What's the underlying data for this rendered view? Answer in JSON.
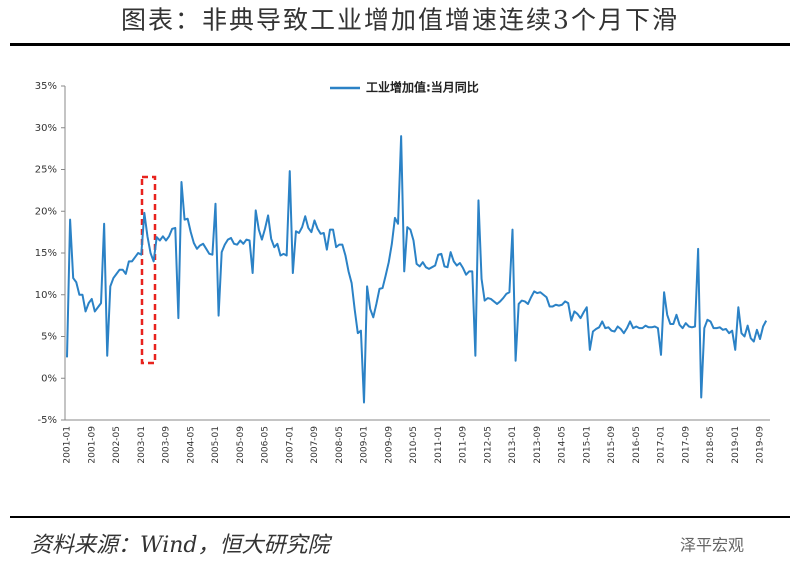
{
  "title": "图表：非典导致工业增加值增速连续3个月下滑",
  "source": "资料来源：Wind，恒大研究院",
  "watermark": "泽平宏观",
  "chart_data": {
    "type": "line",
    "categories": [
      "2001-01",
      null,
      null,
      null,
      null,
      null,
      null,
      null,
      "2001-09",
      null,
      null,
      null,
      null,
      null,
      null,
      null,
      "2002-05",
      null,
      null,
      null,
      null,
      null,
      null,
      null,
      "2003-01",
      null,
      null,
      null,
      null,
      null,
      null,
      null,
      "2003-09",
      null,
      null,
      null,
      null,
      null,
      null,
      null,
      "2004-05",
      null,
      null,
      null,
      null,
      null,
      null,
      null,
      "2005-01",
      null,
      null,
      null,
      null,
      null,
      null,
      null,
      "2005-09",
      null,
      null,
      null,
      null,
      null,
      null,
      null,
      "2006-05",
      null,
      null,
      null,
      null,
      null,
      null,
      null,
      "2007-01",
      null,
      null,
      null,
      null,
      null,
      null,
      null,
      "2007-09",
      null,
      null,
      null,
      null,
      null,
      null,
      null,
      "2008-05",
      null,
      null,
      null,
      null,
      null,
      null,
      null,
      "2009-01",
      null,
      null,
      null,
      null,
      null,
      null,
      null,
      "2009-09",
      null,
      null,
      null,
      null,
      null,
      null,
      null,
      "2010-05",
      null,
      null,
      null,
      null,
      null,
      null,
      null,
      "2011-01",
      null,
      null,
      null,
      null,
      null,
      null,
      null,
      "2011-09",
      null,
      null,
      null,
      null,
      null,
      null,
      null,
      "2012-05",
      null,
      null,
      null,
      null,
      null,
      null,
      null,
      "2013-01",
      null,
      null,
      null,
      null,
      null,
      null,
      null,
      "2013-09",
      null,
      null,
      null,
      null,
      null,
      null,
      null,
      "2014-05",
      null,
      null,
      null,
      null,
      null,
      null,
      null,
      "2015-01",
      null,
      null,
      null,
      null,
      null,
      null,
      null,
      "2015-09",
      null,
      null,
      null,
      null,
      null,
      null,
      null,
      "2016-05",
      null,
      null,
      null,
      null,
      null,
      null,
      null,
      "2017-01",
      null,
      null,
      null,
      null,
      null,
      null,
      null,
      "2017-09",
      null,
      null,
      null,
      null,
      null,
      null,
      null,
      "2018-05",
      null,
      null,
      null,
      null,
      null,
      null,
      null,
      "2019-01",
      null,
      null,
      null,
      null,
      null,
      null,
      null,
      "2019-09",
      null,
      null
    ],
    "series": [
      {
        "name": "工业增加值:当月同比",
        "color": "#2b82c6",
        "values": [
          2.5,
          19,
          12,
          11.5,
          10,
          10,
          8,
          9,
          9.5,
          8,
          8.5,
          9,
          18.5,
          2.7,
          11,
          12,
          12.5,
          13,
          13,
          12.5,
          14,
          14,
          14.5,
          15,
          14.8,
          19.8,
          17,
          15,
          14,
          16.9,
          16.5,
          17,
          16.5,
          17,
          17.9,
          18,
          7.2,
          23.5,
          19,
          19.1,
          17.5,
          16.2,
          15.5,
          15.9,
          16.1,
          15.5,
          14.9,
          14.8,
          20.9,
          7.5,
          15.1,
          16,
          16.6,
          16.8,
          16.1,
          16,
          16.5,
          16.1,
          16.6,
          16.5,
          12.6,
          20.1,
          17.8,
          16.6,
          17.9,
          19.5,
          16.7,
          15.7,
          16.1,
          14.7,
          14.9,
          14.7,
          24.8,
          12.6,
          17.6,
          17.4,
          18.1,
          19.4,
          18,
          17.5,
          18.9,
          17.9,
          17.3,
          17.4,
          15.4,
          17.8,
          17.8,
          15.7,
          16,
          16,
          14.7,
          12.8,
          11.4,
          8.2,
          5.4,
          5.7,
          -2.9,
          11,
          8.3,
          7.3,
          8.9,
          10.7,
          10.8,
          12.3,
          13.9,
          16.1,
          19.2,
          18.5,
          29,
          12.8,
          18.1,
          17.8,
          16.5,
          13.7,
          13.4,
          13.9,
          13.3,
          13.1,
          13.3,
          13.5,
          14.8,
          14.9,
          13.4,
          13.3,
          15.1,
          14,
          13.5,
          13.8,
          13.2,
          12.4,
          12.8,
          12.8,
          2.7,
          21.3,
          11.9,
          9.3,
          9.6,
          9.5,
          9.2,
          8.9,
          9.2,
          9.6,
          10.1,
          10.3,
          17.8,
          2.1,
          8.9,
          9.3,
          9.2,
          8.9,
          9.7,
          10.4,
          10.2,
          10.3,
          10,
          9.7,
          8.6,
          8.6,
          8.8,
          8.7,
          8.8,
          9.2,
          9,
          6.9,
          8,
          7.7,
          7.2,
          7.9,
          8.5,
          3.4,
          5.6,
          5.9,
          6.1,
          6.8,
          6,
          6.1,
          5.7,
          5.6,
          6.2,
          5.9,
          5.4,
          6,
          6.8,
          6,
          6.2,
          6,
          6,
          6.3,
          6.1,
          6.1,
          6.2,
          6,
          2.8,
          10.3,
          7.6,
          6.5,
          6.5,
          7.6,
          6.4,
          6,
          6.6,
          6.2,
          6.1,
          6.2,
          15.5,
          -2.3,
          6,
          7,
          6.8,
          6,
          6,
          6.1,
          5.8,
          5.9,
          5.4,
          5.7,
          3.4,
          8.5,
          5.4,
          5,
          6.3,
          4.8,
          4.4,
          5.8,
          4.7,
          6.2,
          6.9
        ]
      }
    ],
    "ylim": [
      -5,
      35
    ],
    "yticks": [
      {
        "value": -5,
        "label": "-5%"
      },
      {
        "value": 0,
        "label": "0%"
      },
      {
        "value": 5,
        "label": "5%"
      },
      {
        "value": 10,
        "label": "10%"
      },
      {
        "value": 15,
        "label": "15%"
      },
      {
        "value": 20,
        "label": "20%"
      },
      {
        "value": 25,
        "label": "25%"
      },
      {
        "value": 30,
        "label": "30%"
      },
      {
        "value": 35,
        "label": "35%"
      }
    ],
    "legend": "top"
  }
}
